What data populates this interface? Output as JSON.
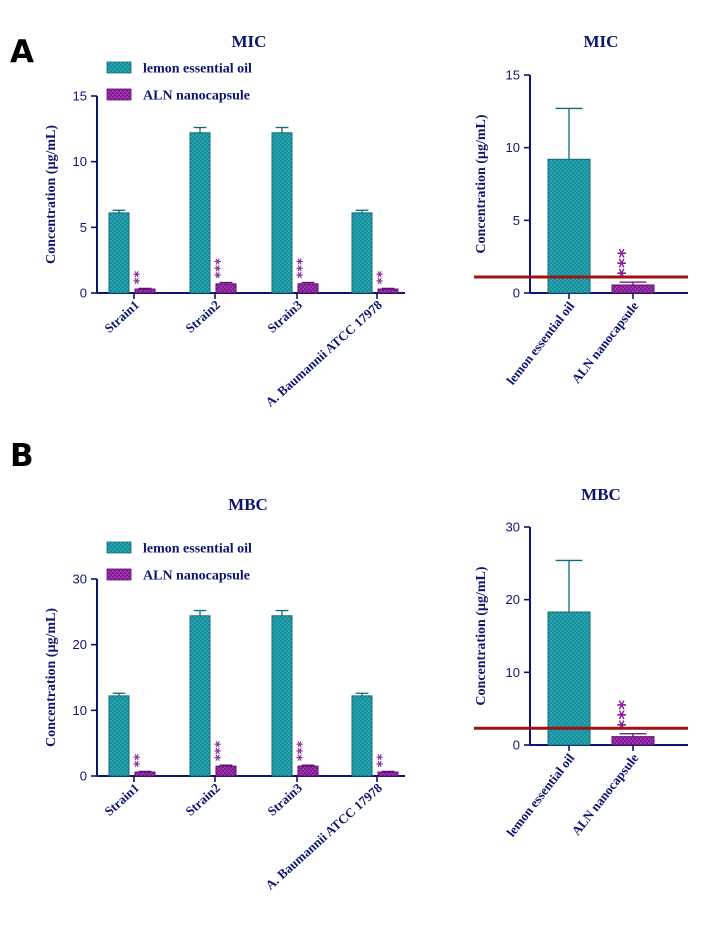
{
  "panels": [
    "A",
    "B"
  ],
  "colors": {
    "axis": "#0d1570",
    "lemon_fill": "#1e96a3",
    "lemon_edge": "#0e6b78",
    "aln_fill": "#8a1f9c",
    "aln_edge": "#5a0f6e",
    "star": "#8a1f9c",
    "threshold": "#9e1313"
  },
  "chart_data": [
    {
      "id": "A-left",
      "panel": "A",
      "type": "bar",
      "title": "MIC",
      "xlabel": "",
      "ylabel": "Concentration (µg/mL)",
      "ylim": [
        0,
        15
      ],
      "yticks": [
        0,
        5,
        10,
        15
      ],
      "categories": [
        "Strain1",
        "Strain2",
        "Strain3",
        "A. Baumannii ATCC 17978"
      ],
      "series": [
        {
          "name": "lemon essential oil",
          "values": [
            6.1,
            12.2,
            12.2,
            6.1
          ],
          "errors": [
            0.2,
            0.4,
            0.4,
            0.2
          ]
        },
        {
          "name": "ALN nanocapsule",
          "values": [
            0.3,
            0.7,
            0.7,
            0.3
          ],
          "errors": [
            0.05,
            0.1,
            0.1,
            0.05
          ]
        }
      ],
      "significance": [
        "**",
        "***",
        "***",
        "**"
      ],
      "legend": "top-left"
    },
    {
      "id": "A-right",
      "panel": "A",
      "type": "bar",
      "title": "MIC",
      "xlabel": "",
      "ylabel": "Concentration (µg/mL)",
      "ylim": [
        0,
        15
      ],
      "yticks": [
        0,
        5,
        10,
        15
      ],
      "categories": [
        "lemon essential oil",
        "ALN nanocapsule"
      ],
      "values": [
        9.2,
        0.55
      ],
      "errors": [
        3.5,
        0.2
      ],
      "significance": [
        "",
        "***"
      ],
      "threshold": 1.1
    },
    {
      "id": "B-left",
      "panel": "B",
      "type": "bar",
      "title": "MBC",
      "xlabel": "",
      "ylabel": "Concentration (µg/mL)",
      "ylim": [
        0,
        30
      ],
      "yticks": [
        0,
        10,
        20,
        30
      ],
      "categories": [
        "Strain1",
        "Strain2",
        "Strain3",
        "A. Baumannii ATCC 17978"
      ],
      "series": [
        {
          "name": "lemon essential oil",
          "values": [
            12.2,
            24.4,
            24.4,
            12.2
          ],
          "errors": [
            0.4,
            0.8,
            0.8,
            0.4
          ]
        },
        {
          "name": "ALN nanocapsule",
          "values": [
            0.6,
            1.5,
            1.5,
            0.6
          ],
          "errors": [
            0.1,
            0.15,
            0.15,
            0.1
          ]
        }
      ],
      "significance": [
        "**",
        "***",
        "***",
        "**"
      ],
      "legend": "top-left"
    },
    {
      "id": "B-right",
      "panel": "B",
      "type": "bar",
      "title": "MBC",
      "xlabel": "",
      "ylabel": "Concentration (µg/mL)",
      "ylim": [
        0,
        30
      ],
      "yticks": [
        0,
        10,
        20,
        30
      ],
      "categories": [
        "lemon essential oil",
        "ALN nanocapsule"
      ],
      "values": [
        18.3,
        1.15
      ],
      "errors": [
        7.1,
        0.4
      ],
      "significance": [
        "",
        "***"
      ],
      "threshold": 2.3
    }
  ]
}
